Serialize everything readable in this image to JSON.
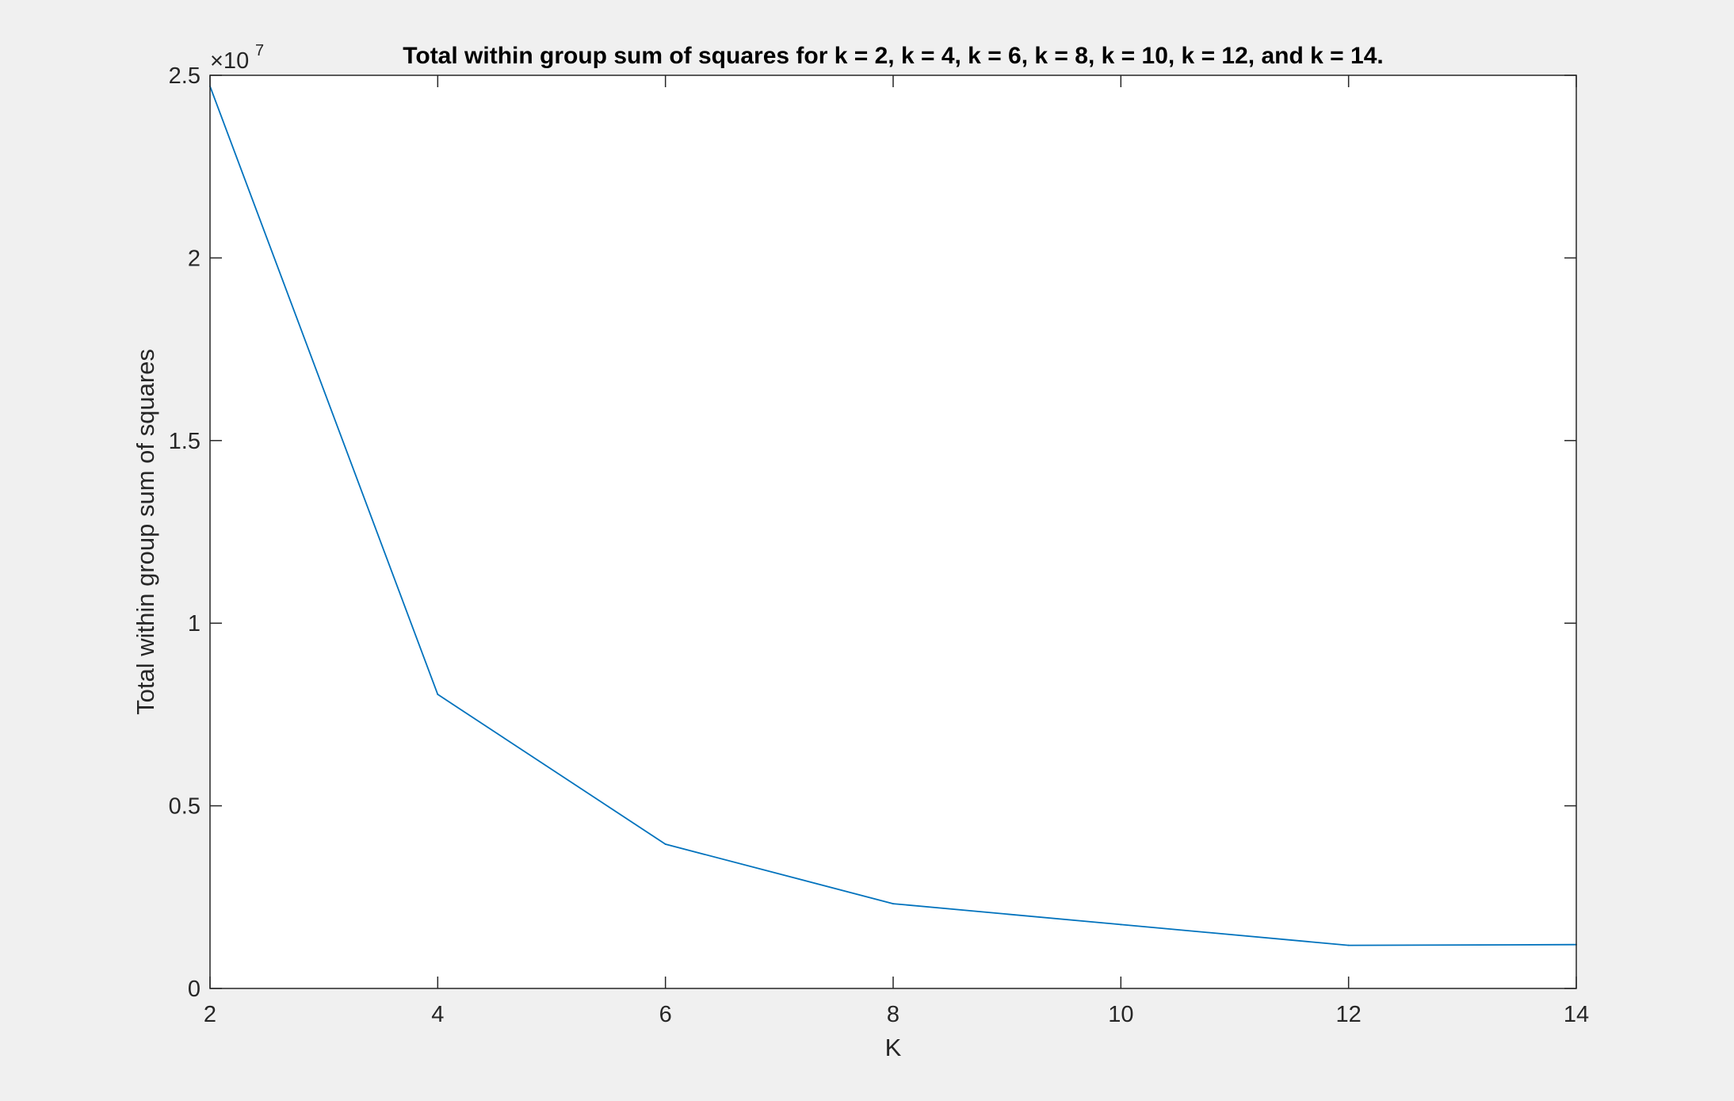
{
  "chart_data": {
    "type": "line",
    "title": "Total within group sum of squares for k = 2, k = 4, k = 6, k = 8, k = 10, k = 12, and k = 14.",
    "xlabel": "K",
    "ylabel": "Total within group sum of squares",
    "xlim": [
      2,
      14
    ],
    "ylim": [
      0,
      2.5
    ],
    "y_exponent_label": "×10",
    "y_exponent": "7",
    "xticks": [
      2,
      4,
      6,
      8,
      10,
      12,
      14
    ],
    "xtick_labels": [
      "2",
      "4",
      "6",
      "8",
      "10",
      "12",
      "14"
    ],
    "yticks": [
      0,
      0.5,
      1,
      1.5,
      2,
      2.5
    ],
    "ytick_labels": [
      "0",
      "0.5",
      "1",
      "1.5",
      "2",
      "2.5"
    ],
    "grid": false,
    "series": [
      {
        "x": [
          2,
          4,
          6,
          8,
          10,
          12,
          14
        ],
        "values": [
          2.47,
          0.805,
          0.395,
          0.232,
          0.175,
          0.118,
          0.12
        ],
        "color": "#0072bd"
      }
    ]
  }
}
